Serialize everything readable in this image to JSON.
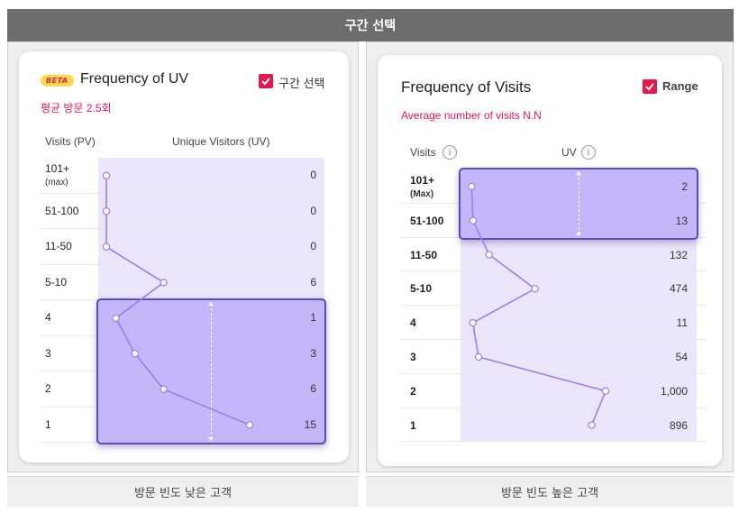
{
  "header": {
    "title": "구간 선택"
  },
  "left": {
    "beta_label": "BETA",
    "title": "Frequency of UV",
    "range_label": "구간 선택",
    "range_checked": true,
    "avg_text": "평균 방문 2.5회",
    "col_visits": "Visits (PV)",
    "col_uv": "Unique Visitors (UV)",
    "caption": "방문 빈도 낮은 고객",
    "selected_range": [
      "4",
      "1"
    ]
  },
  "right": {
    "title": "Frequency of Visits",
    "range_label": "Range",
    "range_checked": true,
    "avg_text": "Average number of visits N.N",
    "col_visits": "Visits",
    "col_uv": "UV",
    "info_glyph": "i",
    "caption": "방문 빈도 높은 고객",
    "selected_range": [
      "101+",
      "51-100"
    ]
  },
  "colors": {
    "accent": "#e4174f",
    "range_fill": "#b8a6fa",
    "range_border": "#5d4bb8",
    "line": "#9b7cf0",
    "lavender": "#ebe6fb"
  },
  "chart_data": [
    {
      "type": "line",
      "categories": [
        "101+ (max)",
        "51-100",
        "11-50",
        "5-10",
        "4",
        "3",
        "2",
        "1"
      ],
      "labels": [
        {
          "main": "101+",
          "sub": "(max)"
        },
        {
          "main": "51-100",
          "sub": ""
        },
        {
          "main": "11-50",
          "sub": ""
        },
        {
          "main": "5-10",
          "sub": ""
        },
        {
          "main": "4",
          "sub": ""
        },
        {
          "main": "3",
          "sub": ""
        },
        {
          "main": "2",
          "sub": ""
        },
        {
          "main": "1",
          "sub": ""
        }
      ],
      "values": [
        0,
        0,
        0,
        6,
        1,
        3,
        6,
        15
      ],
      "value_labels": [
        "0",
        "0",
        "0",
        "6",
        "1",
        "3",
        "6",
        "15"
      ],
      "xlabel": "Unique Visitors (UV)",
      "ylabel": "Visits (PV)"
    },
    {
      "type": "line",
      "categories": [
        "101+ (Max)",
        "51-100",
        "11-50",
        "5-10",
        "4",
        "3",
        "2",
        "1"
      ],
      "labels": [
        {
          "main": "101+",
          "sub": "(Max)"
        },
        {
          "main": "51-100",
          "sub": ""
        },
        {
          "main": "11-50",
          "sub": ""
        },
        {
          "main": "5-10",
          "sub": ""
        },
        {
          "main": "4",
          "sub": ""
        },
        {
          "main": "3",
          "sub": ""
        },
        {
          "main": "2",
          "sub": ""
        },
        {
          "main": "1",
          "sub": ""
        }
      ],
      "values": [
        2,
        13,
        132,
        474,
        11,
        54,
        1000,
        896
      ],
      "value_labels": [
        "2",
        "13",
        "132",
        "474",
        "11",
        "54",
        "1,000",
        "896"
      ],
      "xlabel": "UV",
      "ylabel": "Visits"
    }
  ]
}
